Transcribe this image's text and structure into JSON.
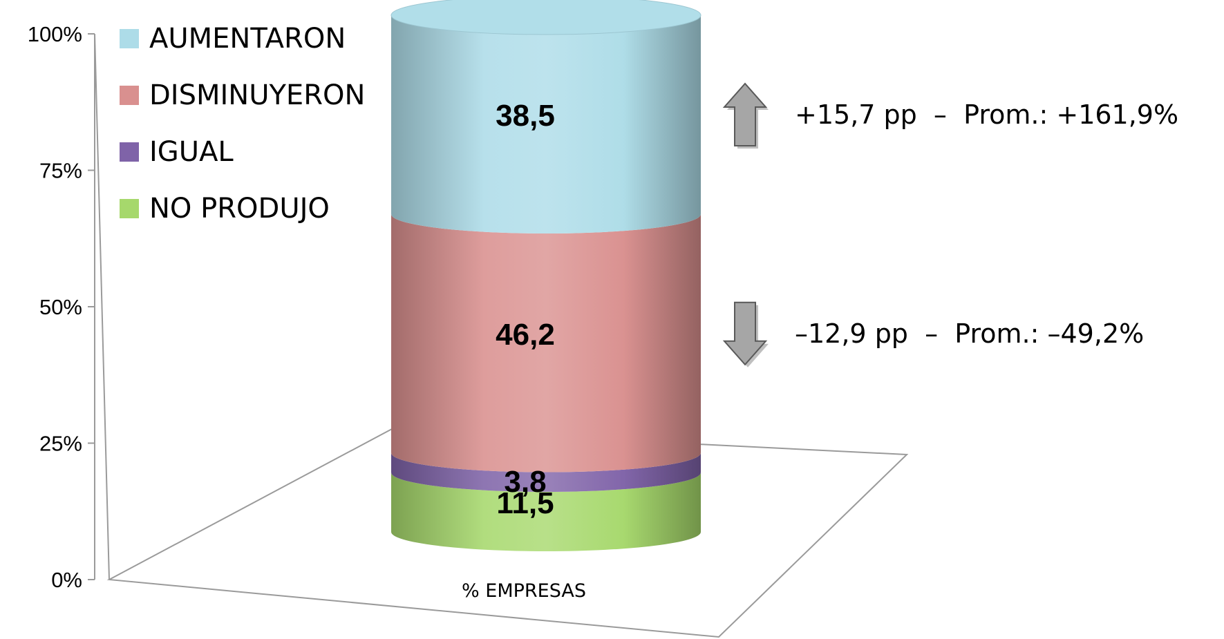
{
  "chart_data": {
    "type": "bar",
    "subtype": "stacked-100-percent-3d-cylinder",
    "title": "",
    "xlabel": "",
    "ylabel": "",
    "categories": [
      "% EMPRESAS"
    ],
    "ylim": [
      0,
      100
    ],
    "y_ticks": [
      "0%",
      "25%",
      "50%",
      "75%",
      "100%"
    ],
    "series": [
      {
        "name": "NO PRODUJO",
        "values": [
          11.5
        ],
        "label": "11,5",
        "color": "#A6D86C"
      },
      {
        "name": "IGUAL",
        "values": [
          3.8
        ],
        "label": "3,8",
        "color": "#7F63A8"
      },
      {
        "name": "DISMINUYERON",
        "values": [
          46.2
        ],
        "label": "46,2",
        "color": "#D9908F"
      },
      {
        "name": "AUMENTARON",
        "values": [
          38.5
        ],
        "label": "38,5",
        "color": "#ADDCE8"
      }
    ],
    "legend": {
      "placement": "top-left",
      "order": [
        "AUMENTARON",
        "DISMINUYERON",
        "IGUAL",
        "NO PRODUJO"
      ]
    },
    "annotations": [
      {
        "series": "AUMENTARON",
        "arrow": "up",
        "text": "+15,7 pp  –  Prom.: +161,9%"
      },
      {
        "series": "DISMINUYERON",
        "arrow": "down",
        "text": "–12,9 pp  –  Prom.: –49,2%"
      }
    ],
    "grid": false
  }
}
